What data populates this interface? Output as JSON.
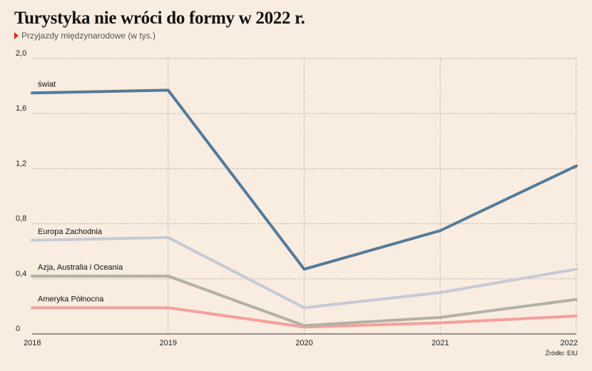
{
  "header": {
    "title": "Turystyka nie wróci do formy w 2022 r.",
    "subtitle": "Przyjazdy międzynarodowe (w tys.)"
  },
  "source": "Źródło: EIU",
  "chart_data": {
    "type": "line",
    "x": [
      "2018",
      "2019",
      "2020",
      "2021",
      "2022"
    ],
    "yticks": [
      "0",
      "0,4",
      "0,8",
      "1,2",
      "1,6",
      "2,0"
    ],
    "ylim": [
      0,
      2.0
    ],
    "grid": true,
    "series": [
      {
        "name": "świat",
        "color": "#537b99",
        "values": [
          1.75,
          1.77,
          0.47,
          0.75,
          1.22
        ]
      },
      {
        "name": "Europa Zachodnia",
        "color": "#c5cad7",
        "values": [
          0.68,
          0.7,
          0.19,
          0.3,
          0.47
        ]
      },
      {
        "name": "Azja, Australia i Oceania",
        "color": "#b3b1a5",
        "values": [
          0.42,
          0.42,
          0.06,
          0.12,
          0.25
        ]
      },
      {
        "name": "Ameryka Północna",
        "color": "#f4a09b",
        "values": [
          0.19,
          0.19,
          0.05,
          0.08,
          0.13
        ]
      }
    ]
  }
}
